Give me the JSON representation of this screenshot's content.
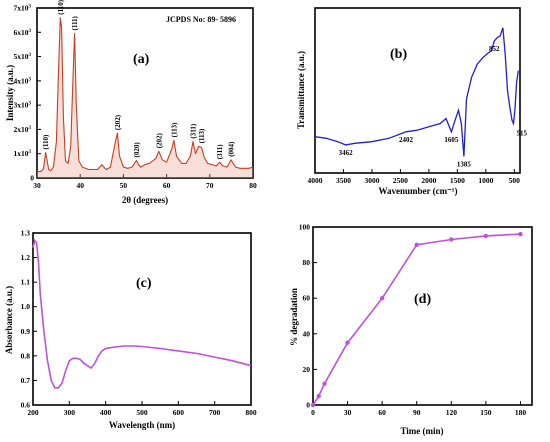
{
  "chart_data": [
    {
      "id": "a",
      "type": "line",
      "panel_label": "(a)",
      "xlabel": "2θ (degrees)",
      "ylabel": "Intensity (a.u.)",
      "annotation": "JCPDS No: 89- 5896",
      "xlim": [
        30,
        80
      ],
      "ylim": [
        0,
        7
      ],
      "x_ticks": [
        "30",
        "40",
        "50",
        "60",
        "70",
        "80"
      ],
      "y_tick_values": [
        0,
        1,
        2,
        3,
        4,
        5,
        6,
        7
      ],
      "y_tick_labels": [
        "0",
        "1x10",
        "2x10",
        "3x10",
        "4x10",
        "5x10",
        "6x10",
        "7x10"
      ],
      "y_tick_exponent": "3",
      "line_color": "#cc3b1f",
      "series": [
        {
          "x": [
            30,
            31,
            31.5,
            32,
            32.7,
            33.2,
            33.8,
            34.5,
            35.0,
            35.4,
            35.7,
            36.1,
            36.6,
            37.2,
            37.8,
            38.3,
            38.7,
            39.1,
            39.7,
            40.5,
            42,
            44,
            45,
            46,
            47,
            48.1,
            48.6,
            49.1,
            50,
            51,
            52,
            53,
            53.5,
            54,
            55,
            56,
            57.5,
            58.2,
            59,
            60,
            61.2,
            61.7,
            62.3,
            63.5,
            64.5,
            65.5,
            66.1,
            66.7,
            67.4,
            68.1,
            68.7,
            69.5,
            70.5,
            71.5,
            72.3,
            73,
            74,
            74.9,
            75.4,
            76,
            77,
            78,
            79,
            80
          ],
          "y": [
            0.25,
            0.28,
            0.38,
            1.05,
            0.35,
            0.3,
            0.45,
            1.5,
            4.5,
            6.6,
            6.2,
            2.5,
            0.7,
            0.6,
            1.3,
            4.0,
            5.95,
            3.0,
            0.7,
            0.45,
            0.35,
            0.35,
            0.55,
            0.35,
            0.45,
            1.45,
            1.85,
            0.9,
            0.45,
            0.4,
            0.45,
            0.72,
            0.55,
            0.45,
            0.55,
            0.6,
            0.8,
            1.1,
            0.75,
            0.65,
            1.2,
            1.55,
            0.9,
            0.6,
            0.6,
            0.9,
            1.5,
            1.0,
            1.3,
            1.25,
            0.85,
            0.6,
            0.55,
            0.5,
            0.65,
            0.5,
            0.45,
            0.75,
            0.6,
            0.45,
            0.4,
            0.4,
            0.4,
            0.45
          ]
        }
      ],
      "peak_labels": [
        {
          "x": 32.0,
          "y": 1.05,
          "text": "(110)"
        },
        {
          "x": 35.4,
          "y": 6.6,
          "text": "(110)"
        },
        {
          "x": 38.7,
          "y": 5.95,
          "text": "(111)"
        },
        {
          "x": 48.6,
          "y": 1.85,
          "text": "(202)"
        },
        {
          "x": 53.0,
          "y": 0.72,
          "text": "(020)"
        },
        {
          "x": 58.2,
          "y": 1.1,
          "text": "(202)"
        },
        {
          "x": 61.7,
          "y": 1.55,
          "text": "(113)"
        },
        {
          "x": 66.1,
          "y": 1.5,
          "text": "(311)"
        },
        {
          "x": 68.1,
          "y": 1.3,
          "text": "(113)"
        },
        {
          "x": 72.3,
          "y": 0.65,
          "text": "(311)"
        },
        {
          "x": 74.9,
          "y": 0.75,
          "text": "(004)"
        }
      ]
    },
    {
      "id": "b",
      "type": "line",
      "panel_label": "(b)",
      "xlabel": "Wavenumber (cm⁻¹)",
      "ylabel": "Transmittance (a.u.)",
      "xlim": [
        4000,
        400
      ],
      "ylim": [
        0,
        100
      ],
      "x_ticks": [
        "4000",
        "3500",
        "3000",
        "2500",
        "2000",
        "1500",
        "1000",
        "500"
      ],
      "line_color": "#1f1fd6",
      "series": [
        {
          "x": [
            4000,
            3800,
            3600,
            3462,
            3300,
            3000,
            2700,
            2402,
            2200,
            2000,
            1800,
            1700,
            1605,
            1540,
            1480,
            1430,
            1385,
            1340,
            1250,
            1150,
            1050,
            950,
            900,
            852,
            800,
            750,
            700,
            660,
            620,
            580,
            540,
            515,
            490,
            460,
            430
          ],
          "y": [
            22,
            21,
            19,
            17,
            18,
            19,
            21,
            25,
            26,
            28,
            30,
            33,
            25,
            32,
            38,
            30,
            10,
            45,
            58,
            66,
            70,
            73,
            74,
            80,
            82,
            83,
            88,
            72,
            50,
            40,
            32,
            30,
            38,
            55,
            62
          ]
        }
      ],
      "peak_labels": [
        {
          "x": 3462,
          "y": 17,
          "text": "3462",
          "pos": "below"
        },
        {
          "x": 2402,
          "y": 25,
          "text": "2402",
          "pos": "below"
        },
        {
          "x": 1605,
          "y": 25,
          "text": "1605",
          "pos": "below"
        },
        {
          "x": 1385,
          "y": 10,
          "text": "1385",
          "pos": "below"
        },
        {
          "x": 852,
          "y": 80,
          "text": "852",
          "pos": "below"
        },
        {
          "x": 515,
          "y": 30,
          "text": "515",
          "pos": "right"
        }
      ]
    },
    {
      "id": "c",
      "type": "line",
      "panel_label": "(c)",
      "xlabel": "Wavelength (nm)",
      "ylabel": "Absorbance (a.u.)",
      "xlim": [
        200,
        800
      ],
      "ylim": [
        0.6,
        1.3
      ],
      "x_ticks": [
        "200",
        "300",
        "400",
        "500",
        "600",
        "700",
        "800"
      ],
      "y_ticks": [
        "0.6",
        "0.7",
        "0.8",
        "0.9",
        "1.0",
        "1.1",
        "1.2",
        "1.3"
      ],
      "line_color": "#c24fe0",
      "series": [
        {
          "x": [
            200,
            205,
            210,
            215,
            220,
            230,
            240,
            250,
            260,
            270,
            280,
            290,
            300,
            310,
            320,
            330,
            340,
            350,
            360,
            370,
            380,
            390,
            400,
            420,
            450,
            480,
            500,
            550,
            600,
            650,
            700,
            750,
            800
          ],
          "y": [
            1.24,
            1.27,
            1.26,
            1.18,
            1.05,
            0.9,
            0.78,
            0.7,
            0.67,
            0.67,
            0.69,
            0.74,
            0.78,
            0.79,
            0.79,
            0.785,
            0.77,
            0.76,
            0.75,
            0.77,
            0.8,
            0.82,
            0.83,
            0.835,
            0.84,
            0.84,
            0.838,
            0.83,
            0.82,
            0.81,
            0.795,
            0.78,
            0.76
          ]
        }
      ]
    },
    {
      "id": "d",
      "type": "line",
      "panel_label": "(d)",
      "xlabel": "Time (min)",
      "ylabel": "% degradation",
      "xlim": [
        0,
        190
      ],
      "ylim": [
        0,
        100
      ],
      "x_ticks": [
        "0",
        "30",
        "60",
        "90",
        "120",
        "150",
        "180"
      ],
      "x_tick_values": [
        0,
        30,
        60,
        90,
        120,
        150,
        180
      ],
      "y_ticks": [
        "0",
        "20",
        "40",
        "60",
        "80",
        "100"
      ],
      "y_tick_values": [
        0,
        20,
        40,
        60,
        80,
        100
      ],
      "line_color": "#c24fe0",
      "series": [
        {
          "x": [
            0,
            5,
            10,
            30,
            60,
            90,
            120,
            150,
            180
          ],
          "y": [
            0,
            5,
            12,
            35,
            60,
            90,
            93,
            95,
            96
          ]
        }
      ]
    }
  ]
}
